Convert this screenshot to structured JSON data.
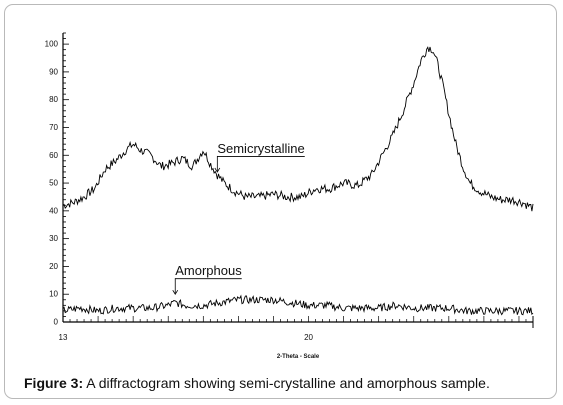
{
  "caption": {
    "label": "Figure 3:",
    "text": " A diffractogram showing semi-crystalline and amorphous sample."
  },
  "chart_data": {
    "type": "line",
    "xlabel": "2-Theta - Scale",
    "ylabel": "",
    "xlim": [
      13,
      26.4
    ],
    "ylim": [
      0,
      104
    ],
    "x_ticks": [
      13,
      20
    ],
    "y_ticks": [
      0,
      10,
      20,
      30,
      40,
      50,
      60,
      70,
      80,
      90,
      100
    ],
    "grid": false,
    "line_color": "#000000",
    "annotations": [
      {
        "text": "Semicrystalline",
        "x": 17.4,
        "y": 54
      },
      {
        "text": "Amorphous",
        "x": 16.2,
        "y": 10
      }
    ],
    "series": [
      {
        "name": "Semicrystalline",
        "x": [
          13.0,
          13.3,
          13.6,
          13.9,
          14.2,
          14.5,
          14.8,
          15.0,
          15.2,
          15.5,
          15.8,
          16.1,
          16.4,
          16.7,
          17.0,
          17.2,
          17.4,
          17.6,
          17.9,
          18.2,
          18.6,
          19.0,
          19.4,
          19.8,
          20.2,
          20.6,
          21.0,
          21.4,
          21.8,
          22.1,
          22.4,
          22.7,
          23.0,
          23.2,
          23.4,
          23.55,
          23.7,
          23.85,
          24.0,
          24.2,
          24.4,
          24.6,
          24.9,
          25.2,
          25.5,
          25.8,
          26.1,
          26.4
        ],
        "y": [
          42,
          43,
          45,
          48,
          55,
          58,
          62,
          64,
          62,
          60,
          56,
          57,
          59,
          56,
          62,
          57,
          53,
          50,
          47,
          45,
          45,
          46,
          45,
          45,
          48,
          48,
          50,
          49,
          53,
          60,
          67,
          76,
          86,
          94,
          99,
          98,
          92,
          84,
          75,
          64,
          56,
          50,
          47,
          45,
          44,
          44,
          43,
          41
        ]
      },
      {
        "name": "Amorphous",
        "x": [
          13.0,
          13.5,
          14.0,
          14.5,
          15.0,
          15.5,
          16.0,
          16.2,
          16.5,
          17.0,
          17.5,
          18.0,
          18.5,
          19.0,
          19.5,
          20.0,
          20.5,
          21.0,
          21.5,
          22.0,
          22.5,
          23.0,
          23.5,
          24.0,
          24.5,
          25.0,
          25.5,
          26.0,
          26.4
        ],
        "y": [
          4,
          5,
          4,
          5,
          5,
          5,
          6,
          7,
          6,
          6,
          7,
          8,
          8,
          8,
          7,
          6,
          6,
          5,
          5,
          5,
          6,
          5,
          5,
          5,
          4,
          4,
          4,
          4,
          4
        ]
      }
    ]
  }
}
